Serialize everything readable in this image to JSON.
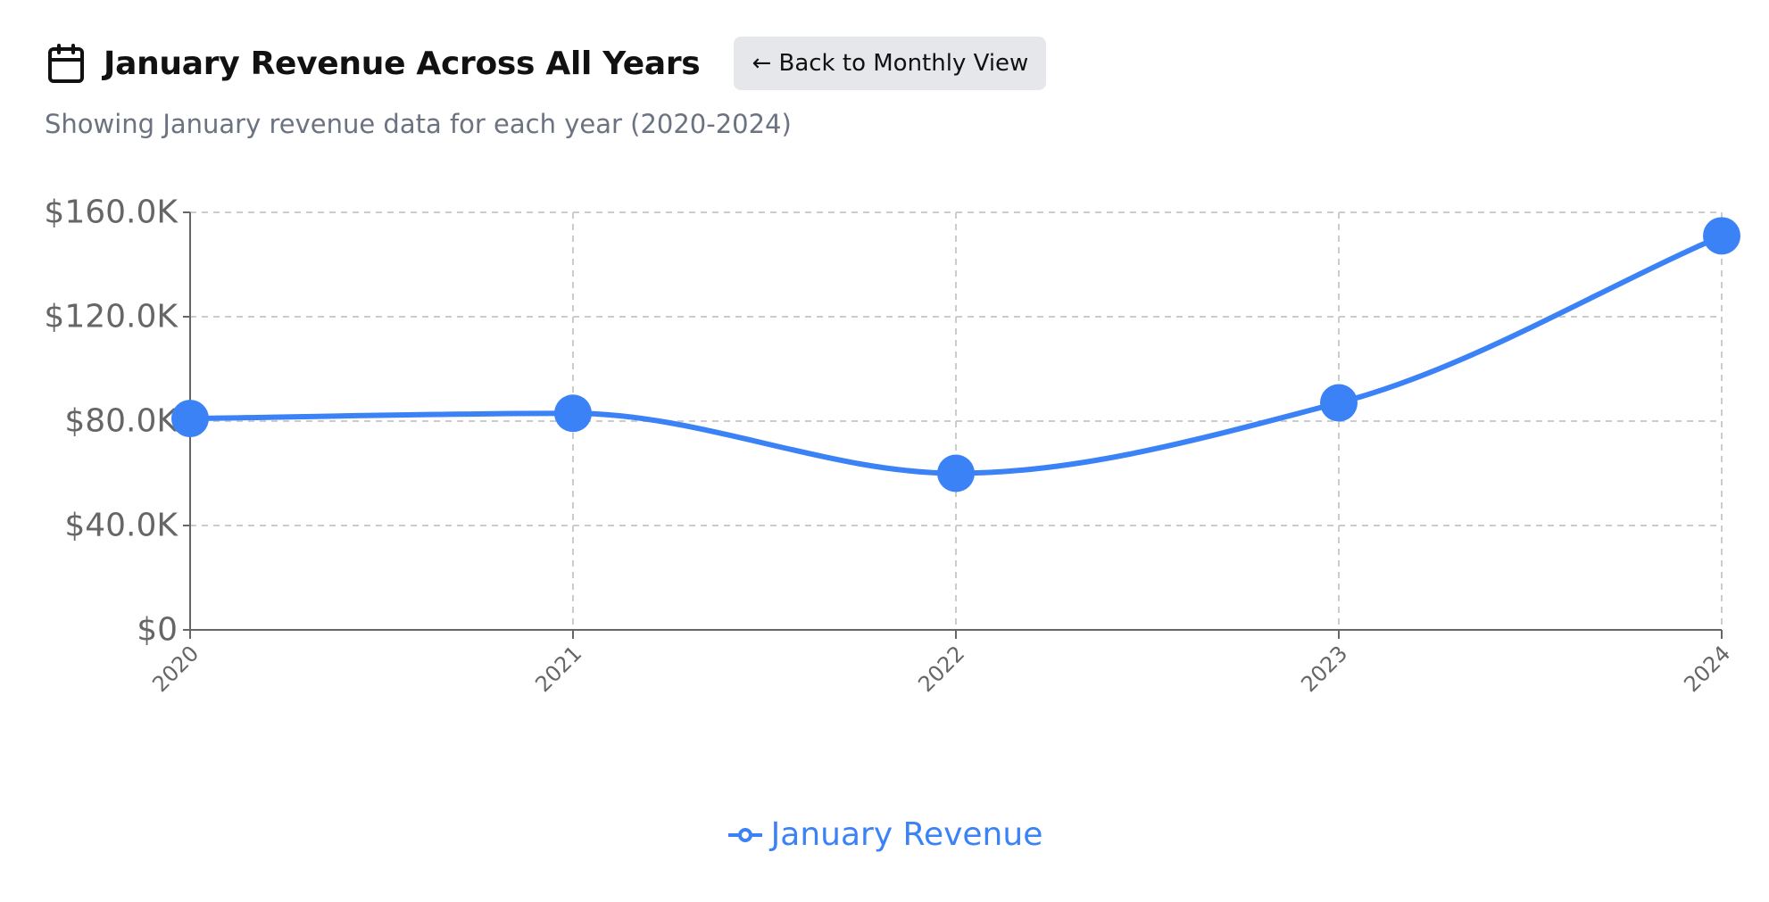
{
  "header": {
    "icon": "calendar-icon",
    "title": "January Revenue Across All Years",
    "back_label": "← Back to Monthly View",
    "subtitle": "Showing January revenue data for each year (2020-2024)"
  },
  "colors": {
    "accent": "#3b82f6",
    "grid": "#cccccc",
    "axis": "#666666",
    "button_bg": "#e5e7eb"
  },
  "chart_data": {
    "type": "line",
    "curve": "smooth",
    "categories": [
      "2020",
      "2021",
      "2022",
      "2023",
      "2024"
    ],
    "series": [
      {
        "name": "January Revenue",
        "values": [
          81000,
          83000,
          60000,
          87000,
          151000
        ],
        "color": "#3b82f6"
      }
    ],
    "ylim": [
      0,
      160000
    ],
    "yticks": [
      0,
      40000,
      80000,
      120000,
      160000
    ],
    "ytick_labels": [
      "$0",
      "$40.0K",
      "$80.0K",
      "$120.0K",
      "$160.0K"
    ],
    "grid": true,
    "grid_style": "dashed",
    "xtick_rotation": -45,
    "legend": {
      "position": "bottom-center",
      "entries": [
        "January Revenue"
      ]
    }
  }
}
